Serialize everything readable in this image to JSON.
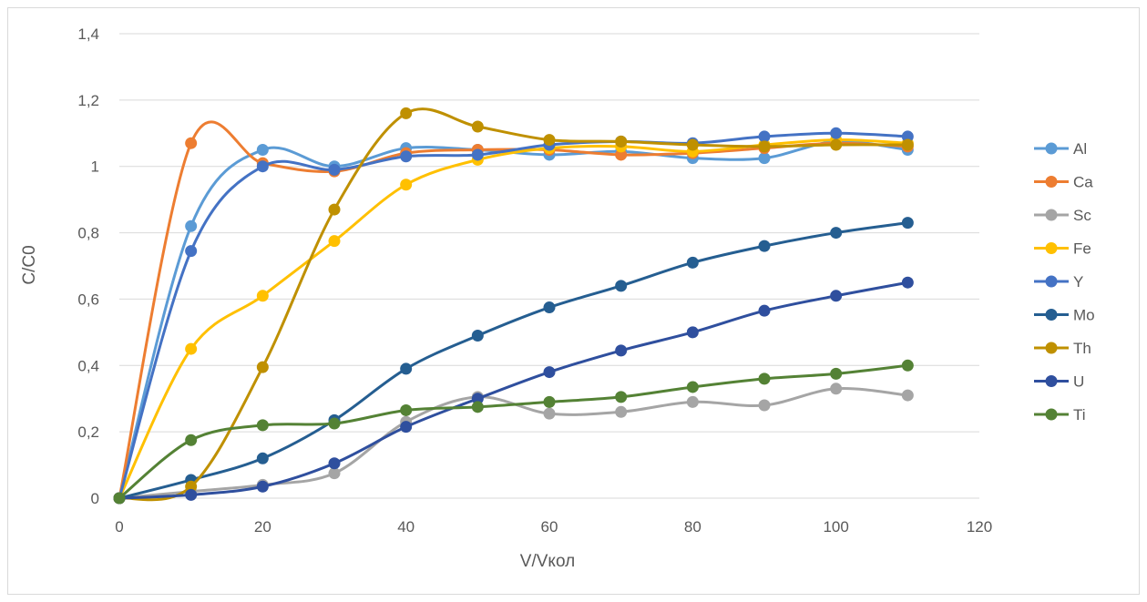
{
  "chart_data": {
    "type": "line",
    "smooth": true,
    "title": "",
    "xlabel": "V/Vкол",
    "ylabel": "C/C0",
    "xlim": [
      0,
      120
    ],
    "ylim": [
      0,
      1.4
    ],
    "x_ticks": [
      "0",
      "20",
      "40",
      "60",
      "80",
      "100",
      "120"
    ],
    "y_ticks": [
      "0",
      "0,2",
      "0,4",
      "0,6",
      "0,8",
      "1",
      "1,2",
      "1,4"
    ],
    "grid": "horizontal",
    "legend_position": "right",
    "x": [
      0,
      10,
      20,
      30,
      40,
      50,
      60,
      70,
      80,
      90,
      100,
      110
    ],
    "series": [
      {
        "name": "Al",
        "color": "#5b9bd5",
        "values": [
          0,
          0.82,
          1.05,
          1.0,
          1.055,
          1.05,
          1.035,
          1.045,
          1.025,
          1.025,
          1.075,
          1.05
        ]
      },
      {
        "name": "Ca",
        "color": "#ed7d31",
        "values": [
          0,
          1.07,
          1.01,
          0.985,
          1.04,
          1.05,
          1.05,
          1.035,
          1.04,
          1.055,
          1.07,
          1.06
        ]
      },
      {
        "name": "Sc",
        "color": "#a5a5a5",
        "values": [
          0,
          0.02,
          0.04,
          0.075,
          0.23,
          0.305,
          0.255,
          0.26,
          0.29,
          0.28,
          0.33,
          0.31
        ]
      },
      {
        "name": "Fe",
        "color": "#ffc000",
        "values": [
          0,
          0.45,
          0.61,
          0.775,
          0.945,
          1.02,
          1.055,
          1.06,
          1.045,
          1.065,
          1.08,
          1.07
        ]
      },
      {
        "name": "Y",
        "color": "#4472c4",
        "values": [
          0,
          0.745,
          1.0,
          0.99,
          1.03,
          1.035,
          1.065,
          1.075,
          1.07,
          1.09,
          1.1,
          1.09
        ]
      },
      {
        "name": "Mo",
        "color": "#255e91",
        "values": [
          0,
          0.055,
          0.12,
          0.235,
          0.39,
          0.49,
          0.575,
          0.64,
          0.71,
          0.76,
          0.8,
          0.83
        ]
      },
      {
        "name": "Th",
        "color": "#bf9000",
        "values": [
          0,
          0.035,
          0.395,
          0.87,
          1.16,
          1.12,
          1.08,
          1.075,
          1.065,
          1.06,
          1.065,
          1.065
        ]
      },
      {
        "name": "U",
        "color": "#2f4f9e",
        "values": [
          0,
          0.01,
          0.035,
          0.105,
          0.215,
          0.3,
          0.38,
          0.445,
          0.5,
          0.565,
          0.61,
          0.65
        ]
      },
      {
        "name": "Ti",
        "color": "#548235",
        "values": [
          0,
          0.175,
          0.22,
          0.225,
          0.265,
          0.275,
          0.29,
          0.305,
          0.335,
          0.36,
          0.375,
          0.4
        ]
      }
    ]
  }
}
